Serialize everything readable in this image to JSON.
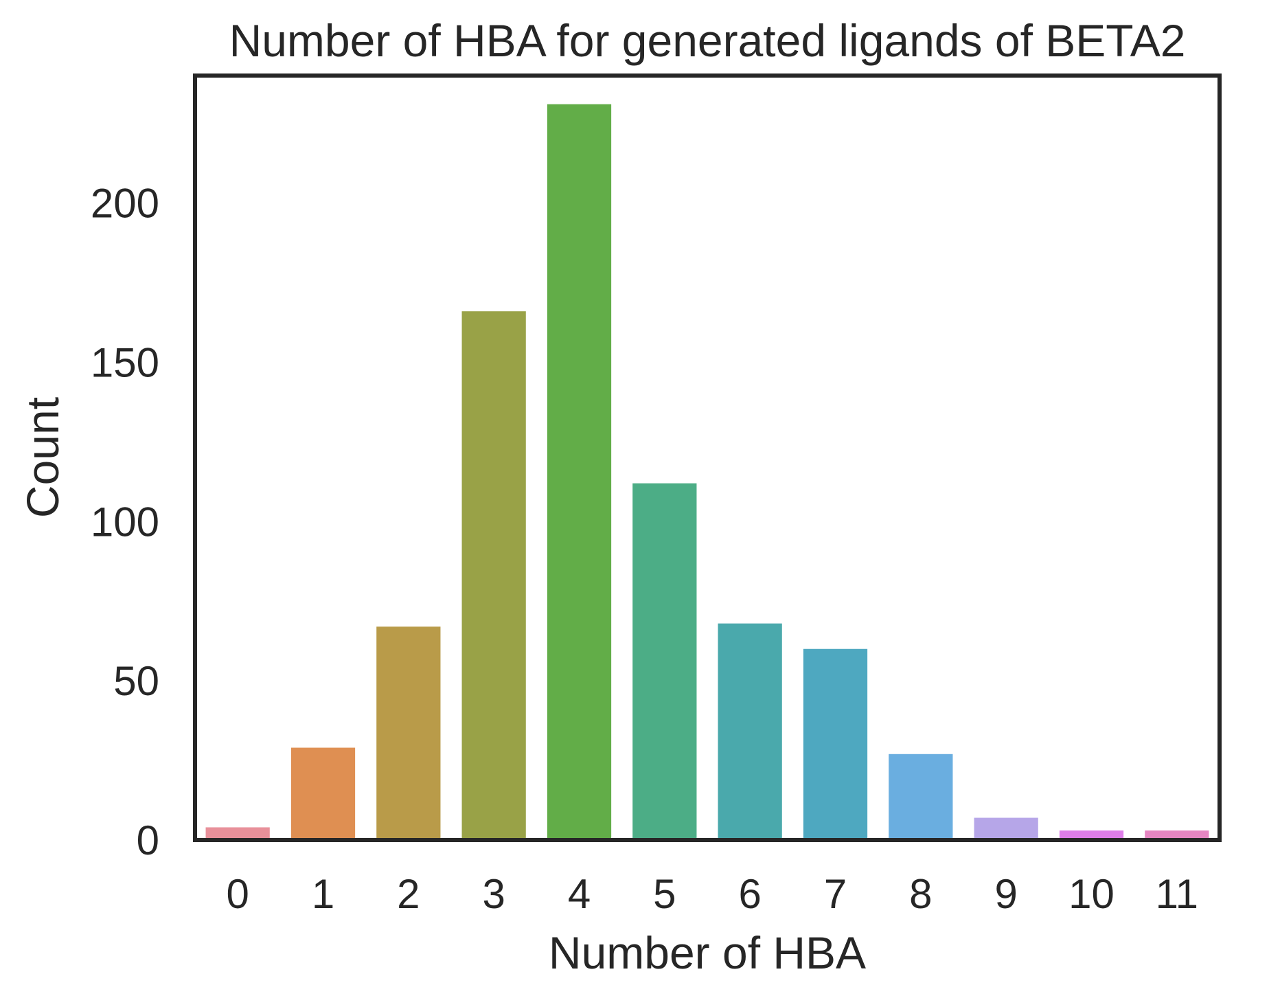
{
  "chart_data": {
    "type": "bar",
    "title": "Number of HBA for generated ligands of BETA2",
    "xlabel": "Number of HBA",
    "ylabel": "Count",
    "categories": [
      "0",
      "1",
      "2",
      "3",
      "4",
      "5",
      "6",
      "7",
      "8",
      "9",
      "10",
      "11"
    ],
    "values": [
      4,
      29,
      67,
      166,
      231,
      112,
      68,
      60,
      27,
      7,
      3,
      3
    ],
    "colors": [
      "#e8909a",
      "#df8f52",
      "#b99b49",
      "#99a247",
      "#62ad48",
      "#4cad86",
      "#4aa9ac",
      "#4ea8c0",
      "#6aaee0",
      "#b6a6e8",
      "#de7ee8",
      "#e686c2"
    ],
    "ylim": [
      0,
      240
    ],
    "yticks": [
      0,
      50,
      100,
      150,
      200
    ],
    "grid": false,
    "legend": false
  }
}
